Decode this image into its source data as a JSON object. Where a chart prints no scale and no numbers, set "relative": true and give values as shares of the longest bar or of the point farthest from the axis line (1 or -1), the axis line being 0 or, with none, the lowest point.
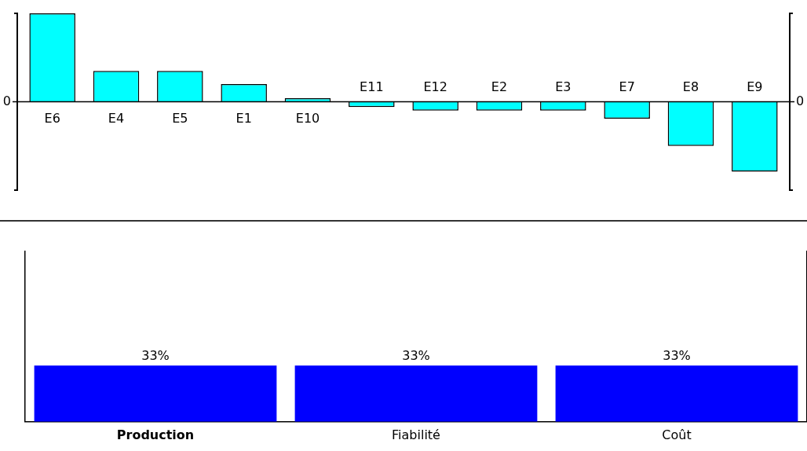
{
  "chart_data": [
    {
      "type": "bar",
      "categories": [
        "E6",
        "E4",
        "E5",
        "E1",
        "E10",
        "E11",
        "E12",
        "E2",
        "E3",
        "E7",
        "E8",
        "E9"
      ],
      "values": [
        1,
        0.35,
        0.35,
        0.2,
        0.04,
        -0.06,
        -0.1,
        -0.1,
        -0.1,
        -0.19,
        -0.5,
        -0.79
      ],
      "color": "#00ffff",
      "relative": true,
      "annotations": [
        "0",
        "0"
      ],
      "grid": false,
      "legend": false
    },
    {
      "type": "bar",
      "categories": [
        "Production",
        "Fiabilité",
        "Coût"
      ],
      "values": [
        33,
        33,
        33
      ],
      "value_labels": [
        "33%",
        "33%",
        "33%"
      ],
      "color": "#0000ff",
      "ylim": [
        0,
        100
      ],
      "tick_labels": "x",
      "grid": false,
      "legend": false
    }
  ]
}
